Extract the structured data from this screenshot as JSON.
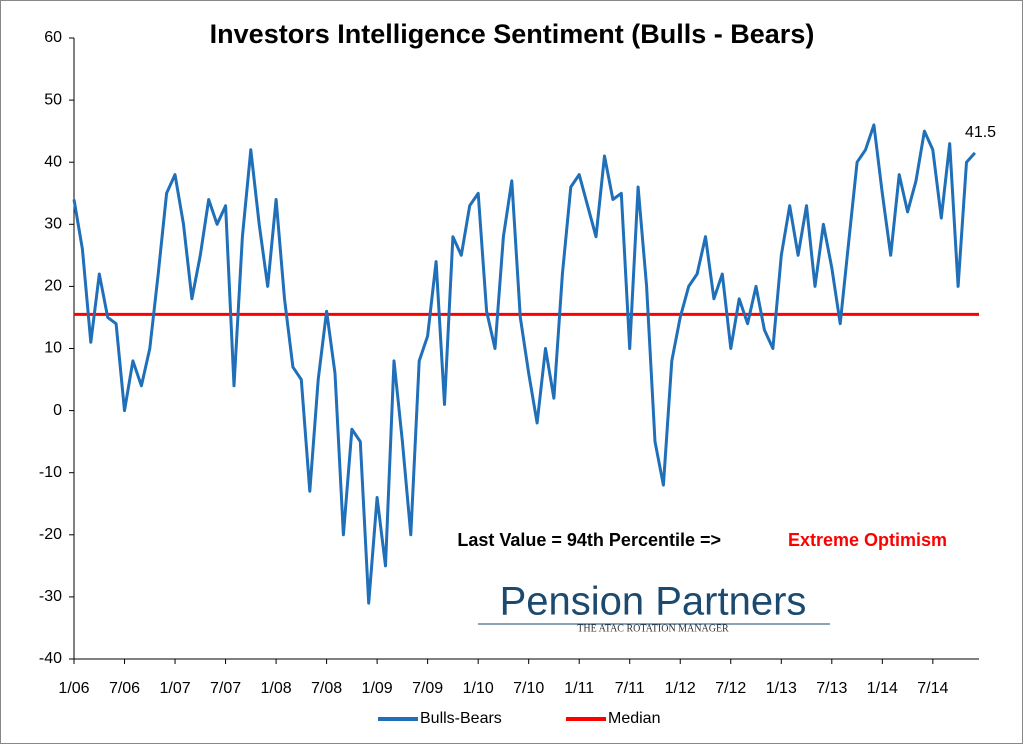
{
  "chart_data": {
    "type": "line",
    "title": "Investors Intelligence Sentiment (Bulls - Bears)",
    "categories": [
      "1/06",
      null,
      null,
      null,
      null,
      null,
      "7/06",
      null,
      null,
      null,
      null,
      null,
      "1/07",
      null,
      null,
      null,
      null,
      null,
      "7/07",
      null,
      null,
      null,
      null,
      null,
      "1/08",
      null,
      null,
      null,
      null,
      null,
      "7/08",
      null,
      null,
      null,
      null,
      null,
      "1/09",
      null,
      null,
      null,
      null,
      null,
      "7/09",
      null,
      null,
      null,
      null,
      null,
      "1/10",
      null,
      null,
      null,
      null,
      null,
      "7/10",
      null,
      null,
      null,
      null,
      null,
      "1/11",
      null,
      null,
      null,
      null,
      null,
      "7/11",
      null,
      null,
      null,
      null,
      null,
      "1/12",
      null,
      null,
      null,
      null,
      null,
      "7/12",
      null,
      null,
      null,
      null,
      null,
      "1/13",
      null,
      null,
      null,
      null,
      null,
      "7/13",
      null,
      null,
      null,
      null,
      null,
      "1/14",
      null,
      null,
      null,
      null,
      null,
      "7/14",
      null,
      null,
      null,
      null,
      null
    ],
    "series": [
      {
        "name": "Bulls-Bears",
        "color": "#1f6fb9",
        "values": [
          34,
          26,
          11,
          22,
          15,
          14,
          0,
          8,
          4,
          10,
          22,
          35,
          38,
          30,
          18,
          25,
          34,
          30,
          33,
          4,
          28,
          42,
          30,
          20,
          34,
          18,
          7,
          5,
          -13,
          5,
          16,
          6,
          -20,
          -3,
          -5,
          -31,
          -14,
          -25,
          8,
          -5,
          -20,
          8,
          12,
          24,
          1,
          28,
          25,
          33,
          35,
          16,
          10,
          28,
          37,
          15,
          6,
          -2,
          10,
          2,
          22,
          36,
          38,
          33,
          28,
          41,
          34,
          35,
          10,
          36,
          20,
          -5,
          -12,
          8,
          15,
          20,
          22,
          28,
          18,
          22,
          10,
          18,
          14,
          20,
          13,
          10,
          25,
          33,
          25,
          33,
          20,
          30,
          23,
          14,
          27,
          40,
          42,
          46,
          35,
          25,
          38,
          32,
          37,
          45,
          42,
          31,
          43,
          20,
          40,
          41.5
        ]
      }
    ],
    "reference_lines": [
      {
        "name": "Median",
        "value": 15.5,
        "color": "#ff0000"
      }
    ],
    "ylim": [
      -40,
      60
    ],
    "yticks": [
      -40,
      -30,
      -20,
      -10,
      0,
      10,
      20,
      30,
      40,
      50,
      60
    ],
    "annotation": {
      "text": "Last Value = 94th Percentile => ",
      "highlight": "Extreme Optimism"
    },
    "logo": {
      "name": "Pension Partners",
      "tagline": "THE ATAC ROTATION MANAGER"
    },
    "legend": "bottom"
  }
}
